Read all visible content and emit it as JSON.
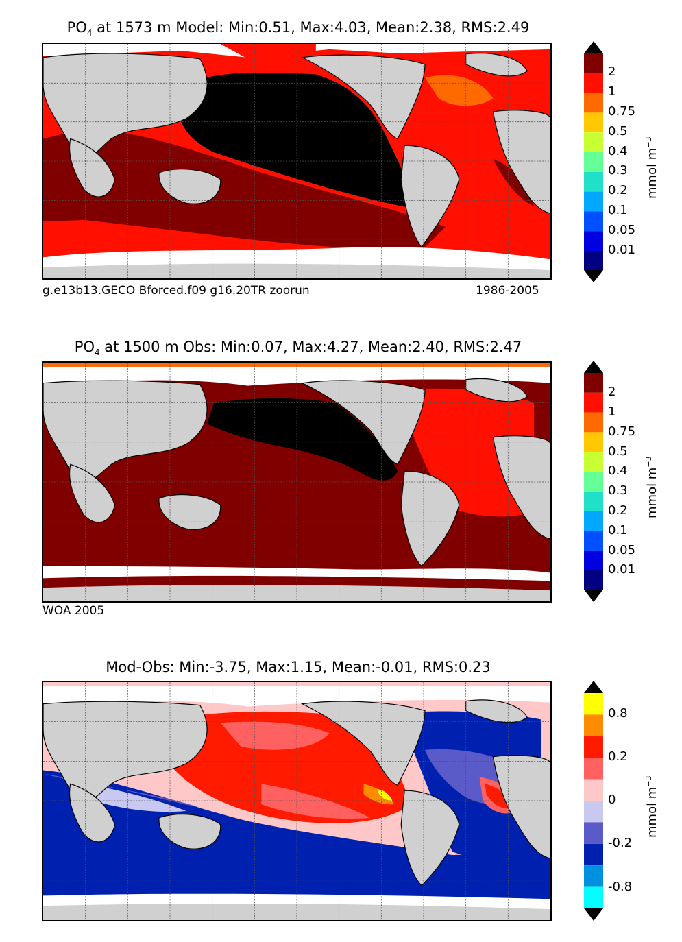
{
  "panels": [
    {
      "id": "model",
      "title_pre": "PO",
      "title_sub": "4",
      "title_post": " at 1573 m Model: Min:0.51, Max:4.03, Mean:2.38, RMS:2.49",
      "caption_left": "g.e13b13.GECO Bforced.f09 g16.20TR zoorun",
      "caption_right": "1986-2005",
      "colorbar": {
        "labels": [
          "2",
          "1",
          "0.75",
          "0.5",
          "0.4",
          "0.3",
          "0.2",
          "0.1",
          "0.05",
          "0.01"
        ],
        "unit": "mmol m",
        "unit_sup": "−3",
        "colors": [
          "#000000",
          "#800000",
          "#ff1000",
          "#ff6a00",
          "#ffc800",
          "#c8ff32",
          "#64ff96",
          "#20e0c8",
          "#00a8ff",
          "#0050ff",
          "#0000e0",
          "#000080"
        ]
      }
    },
    {
      "id": "obs",
      "title_pre": "PO",
      "title_sub": "4",
      "title_post": " at 1500 m Obs: Min:0.07, Max:4.27, Mean:2.40, RMS:2.47",
      "caption_left": "WOA 2005",
      "caption_right": "",
      "colorbar": {
        "labels": [
          "2",
          "1",
          "0.75",
          "0.5",
          "0.4",
          "0.3",
          "0.2",
          "0.1",
          "0.05",
          "0.01"
        ],
        "unit": "mmol m",
        "unit_sup": "−3",
        "colors": [
          "#000000",
          "#800000",
          "#ff1000",
          "#ff6a00",
          "#ffc800",
          "#c8ff32",
          "#64ff96",
          "#20e0c8",
          "#00a8ff",
          "#0050ff",
          "#0000e0",
          "#000080"
        ]
      }
    },
    {
      "id": "diff",
      "title_pre": "Mod-Obs: Min:-3.75, Max:1.15, Mean:-0.01, RMS:0.23",
      "title_sub": "",
      "title_post": "",
      "caption_left": "",
      "caption_right": "",
      "colorbar": {
        "labels": [
          "0.8",
          "0.2",
          "0",
          "-0.2",
          "-0.8"
        ],
        "unit": "mmol m",
        "unit_sup": "−3",
        "colors": [
          "#000000",
          "#ffff00",
          "#ff8c00",
          "#ff1a00",
          "#ff6060",
          "#ffc8c8",
          "#c8c8f0",
          "#5a5ac8",
          "#0020b0",
          "#0090e0",
          "#00ffff",
          "#000000"
        ]
      }
    }
  ],
  "map_colors": {
    "land": "#d0d0d0",
    "nodata": "#ffffff",
    "coast": "#000000",
    "grid": "#505050"
  }
}
